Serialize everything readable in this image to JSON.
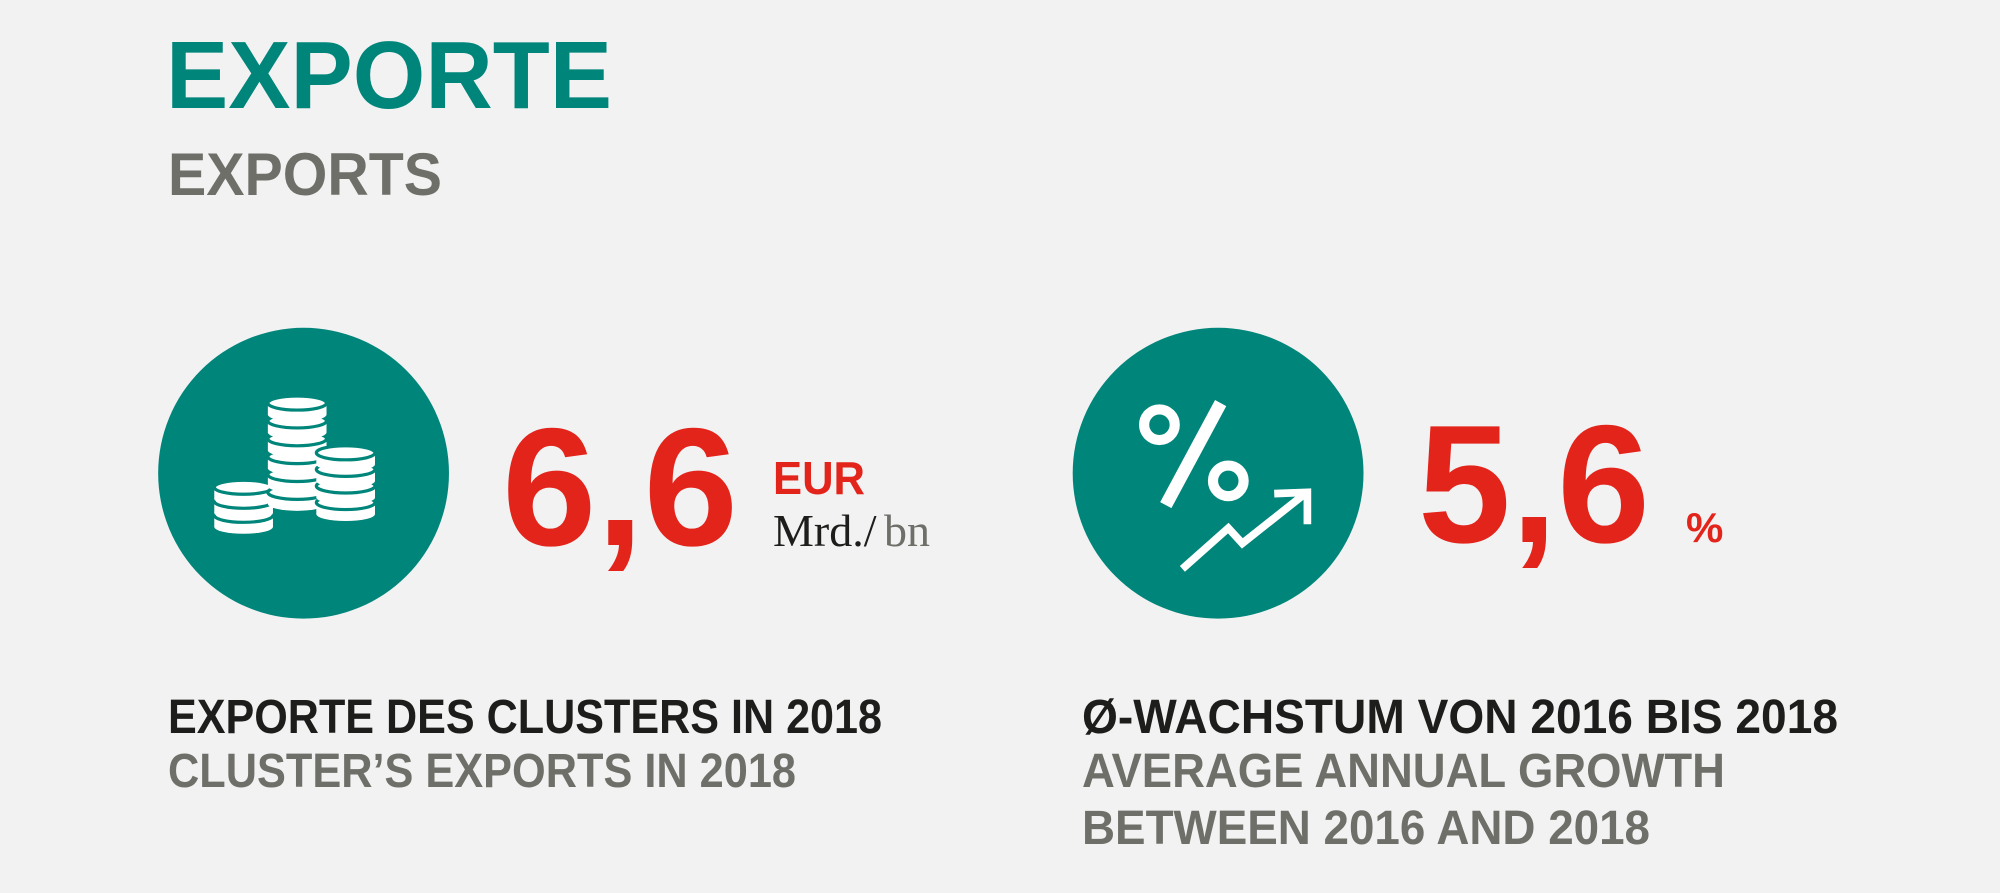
{
  "header": {
    "title": "EXPORTE",
    "subtitle": "EXPORTS"
  },
  "stats": [
    {
      "value": "6,6",
      "unit": "EUR",
      "scale_de": "Mrd./",
      "scale_en": "bn",
      "caption_de": "EXPORTE DES CLUSTERS IN 2018",
      "caption_en": [
        "CLUSTER’S EXPORTS IN 2018"
      ]
    },
    {
      "value": "5,6",
      "unit": "%",
      "caption_de": "Ø-WACHSTUM VON 2016 BIS 2018",
      "caption_en": [
        "AVERAGE ANNUAL GROWTH",
        "BETWEEN 2016 AND 2018"
      ]
    }
  ]
}
